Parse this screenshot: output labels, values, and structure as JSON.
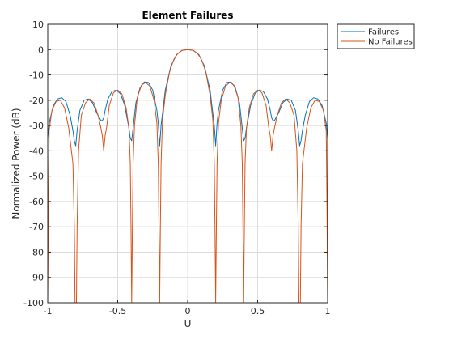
{
  "chart_data": {
    "type": "line",
    "title": "Element Failures",
    "xlabel": "U",
    "ylabel": "Normalized Power (dB)",
    "xlim": [
      -1,
      1
    ],
    "ylim": [
      -100,
      10
    ],
    "xticks": [
      -1,
      -0.5,
      0,
      0.5,
      1
    ],
    "xtick_labels": [
      "-1",
      "-0.5",
      "0",
      "0.5",
      "1"
    ],
    "yticks": [
      10,
      0,
      -10,
      -20,
      -30,
      -40,
      -50,
      -60,
      -70,
      -80,
      -90,
      -100
    ],
    "ytick_labels": [
      "10",
      "0",
      "-10",
      "-20",
      "-30",
      "-40",
      "-50",
      "-60",
      "-70",
      "-80",
      "-90",
      "-100"
    ],
    "grid": true,
    "legend_position": "outside-top-right",
    "series": [
      {
        "name": "Failures",
        "color": "#0072BD",
        "x": [
          -1,
          -0.99,
          -0.96,
          -0.93,
          -0.9,
          -0.87,
          -0.84,
          -0.82,
          -0.81,
          -0.8,
          -0.79,
          -0.77,
          -0.74,
          -0.71,
          -0.68,
          -0.65,
          -0.62,
          -0.61,
          -0.6,
          -0.59,
          -0.57,
          -0.54,
          -0.51,
          -0.48,
          -0.45,
          -0.42,
          -0.41,
          -0.4,
          -0.39,
          -0.37,
          -0.34,
          -0.31,
          -0.28,
          -0.25,
          -0.22,
          -0.21,
          -0.2,
          -0.19,
          -0.16,
          -0.12,
          -0.08,
          -0.04,
          0,
          0.04,
          0.08,
          0.12,
          0.16,
          0.19,
          0.2,
          0.21,
          0.22,
          0.25,
          0.28,
          0.31,
          0.34,
          0.37,
          0.39,
          0.4,
          0.41,
          0.42,
          0.45,
          0.48,
          0.51,
          0.54,
          0.57,
          0.59,
          0.6,
          0.61,
          0.62,
          0.65,
          0.68,
          0.71,
          0.74,
          0.77,
          0.79,
          0.8,
          0.81,
          0.82,
          0.84,
          0.87,
          0.9,
          0.93,
          0.96,
          0.99,
          1
        ],
        "y": [
          -35,
          -29,
          -22,
          -19.5,
          -19,
          -20.5,
          -26,
          -32,
          -36,
          -38,
          -32,
          -24,
          -20,
          -19.5,
          -21,
          -25,
          -28,
          -28,
          -27,
          -24,
          -19.5,
          -16.5,
          -16,
          -17.5,
          -22,
          -31,
          -35,
          -36,
          -31,
          -21,
          -15,
          -12.8,
          -13,
          -16,
          -24,
          -29,
          -38,
          -30,
          -16,
          -6.5,
          -2,
          -0.3,
          0,
          -0.3,
          -2,
          -6.5,
          -16,
          -30,
          -38,
          -29,
          -24,
          -16,
          -13,
          -12.8,
          -15,
          -21,
          -31,
          -36,
          -35,
          -31,
          -22,
          -17.5,
          -16,
          -16.5,
          -19.5,
          -24,
          -27,
          -28,
          -28,
          -25,
          -21,
          -19.5,
          -20,
          -24,
          -32,
          -38,
          -36,
          -32,
          -26,
          -20.5,
          -19,
          -19.5,
          -22,
          -29,
          -35
        ]
      },
      {
        "name": "No Failures",
        "color": "#D95319",
        "x": [
          -1,
          -0.995,
          -0.99,
          -0.97,
          -0.94,
          -0.91,
          -0.88,
          -0.85,
          -0.82,
          -0.81,
          -0.805,
          -0.8,
          -0.795,
          -0.79,
          -0.78,
          -0.76,
          -0.73,
          -0.7,
          -0.67,
          -0.64,
          -0.62,
          -0.61,
          -0.6,
          -0.59,
          -0.58,
          -0.56,
          -0.53,
          -0.5,
          -0.47,
          -0.44,
          -0.42,
          -0.41,
          -0.405,
          -0.4,
          -0.395,
          -0.39,
          -0.38,
          -0.36,
          -0.33,
          -0.3,
          -0.27,
          -0.24,
          -0.22,
          -0.21,
          -0.205,
          -0.2,
          -0.195,
          -0.19,
          -0.18,
          -0.16,
          -0.13,
          -0.1,
          -0.07,
          -0.04,
          0,
          0.04,
          0.07,
          0.1,
          0.13,
          0.16,
          0.18,
          0.19,
          0.195,
          0.2,
          0.205,
          0.21,
          0.22,
          0.24,
          0.27,
          0.3,
          0.33,
          0.36,
          0.38,
          0.39,
          0.395,
          0.4,
          0.405,
          0.41,
          0.42,
          0.44,
          0.47,
          0.5,
          0.53,
          0.56,
          0.58,
          0.59,
          0.6,
          0.61,
          0.62,
          0.64,
          0.67,
          0.7,
          0.73,
          0.76,
          0.78,
          0.79,
          0.795,
          0.8,
          0.805,
          0.81,
          0.82,
          0.85,
          0.88,
          0.91,
          0.94,
          0.97,
          0.99,
          0.995,
          1
        ],
        "y": [
          -100,
          -60,
          -32,
          -24,
          -20.5,
          -20,
          -23,
          -31,
          -45,
          -70,
          -100,
          -100,
          -100,
          -70,
          -40,
          -26,
          -21,
          -19.5,
          -21,
          -26,
          -31,
          -34,
          -40,
          -34,
          -31,
          -22,
          -17,
          -16,
          -17.5,
          -23,
          -31,
          -45,
          -70,
          -100,
          -70,
          -45,
          -30,
          -19,
          -14,
          -13,
          -14.5,
          -20,
          -29,
          -45,
          -70,
          -100,
          -70,
          -45,
          -28,
          -18,
          -9,
          -4,
          -1.5,
          -0.3,
          0,
          -0.3,
          -1.5,
          -4,
          -9,
          -18,
          -28,
          -45,
          -70,
          -100,
          -70,
          -45,
          -29,
          -20,
          -14.5,
          -13,
          -14,
          -19,
          -30,
          -45,
          -70,
          -100,
          -70,
          -45,
          -31,
          -23,
          -17.5,
          -16,
          -17,
          -22,
          -31,
          -34,
          -40,
          -34,
          -31,
          -26,
          -21,
          -19.5,
          -21,
          -26,
          -40,
          -70,
          -100,
          -100,
          -100,
          -70,
          -45,
          -31,
          -23,
          -20,
          -20.5,
          -24,
          -32,
          -60,
          -100
        ]
      }
    ]
  }
}
